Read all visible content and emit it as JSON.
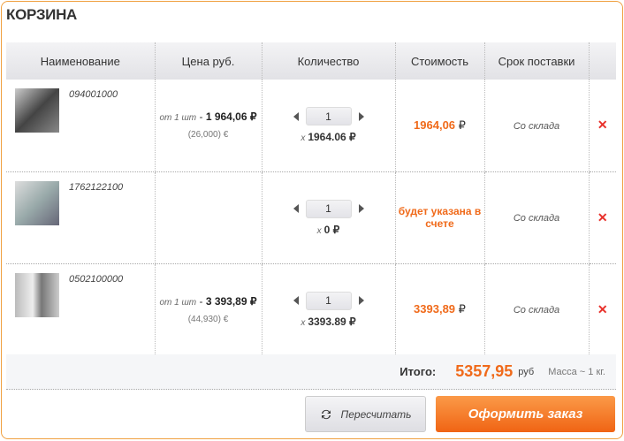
{
  "title": "КОРЗИНА",
  "columns": [
    "Наименование",
    "Цена руб.",
    "Количество",
    "Стоимость",
    "Срок поставки"
  ],
  "rows": [
    {
      "sku": "094001000",
      "from": "от 1 шт",
      "price": "1 964,06 ₽",
      "eur": "(26,000) €",
      "qty": "1",
      "mult": "1964.06 ₽",
      "cost": "1964,06",
      "cost_unit": "₽",
      "delivery": "Со склада"
    },
    {
      "sku": "1762122100",
      "from": "",
      "price": "",
      "eur": "",
      "qty": "1",
      "mult": "0 ₽",
      "cost": "будет указана в счете",
      "cost_unit": "",
      "delivery": "Со склада"
    },
    {
      "sku": "0502100000",
      "from": "от 1 шт",
      "price": "3 393,89 ₽",
      "eur": "(44,930) €",
      "qty": "1",
      "mult": "3393.89 ₽",
      "cost": "3393,89",
      "cost_unit": "₽",
      "delivery": "Со склада"
    }
  ],
  "total": {
    "label": "Итого:",
    "value": "5357,95",
    "unit": "руб",
    "mass": "Масса ~ 1 кг."
  },
  "buttons": {
    "recalc": "Пересчитать",
    "checkout": "Оформить заказ"
  },
  "x": "x",
  "del": "✕",
  "sep": " - ",
  "colors": {
    "accent": "#f06a1a",
    "delete": "#e8302a",
    "border": "#f0a040"
  }
}
